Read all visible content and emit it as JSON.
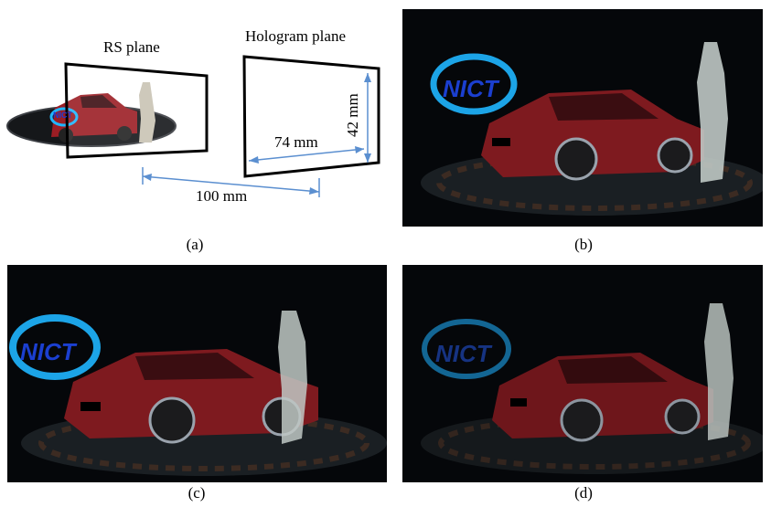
{
  "figure": {
    "diagram": {
      "rs_plane_label": "RS plane",
      "hologram_plane_label": "Hologram plane",
      "width_label": "74 mm",
      "height_label": "42 mm",
      "distance_label": "100 mm",
      "logo_text": "NICT"
    },
    "captions": {
      "a": "(a)",
      "b": "(b)",
      "c": "(c)",
      "d": "(d)"
    },
    "colors": {
      "arrow": "#5b8fd0",
      "car_body": "#9b1d24",
      "statue": "#c9c3b4",
      "logo_ring": "#1fb6ff"
    }
  }
}
